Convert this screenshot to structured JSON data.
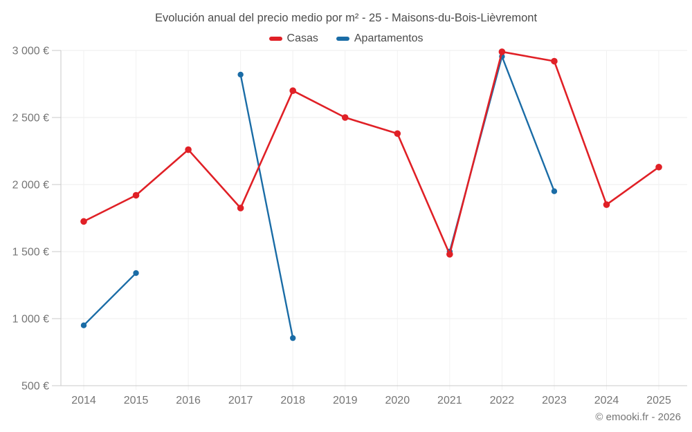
{
  "chart_data": {
    "type": "line",
    "title": "Evolución anual del precio medio por m² - 25 - Maisons-du-Bois-Lièvremont",
    "categories": [
      "2014",
      "2015",
      "2016",
      "2017",
      "2018",
      "2019",
      "2020",
      "2021",
      "2022",
      "2023",
      "2024",
      "2025"
    ],
    "series": [
      {
        "name": "Casas",
        "color": "#e02026",
        "values": [
          1725,
          1920,
          2260,
          1825,
          2700,
          2500,
          2380,
          1480,
          2990,
          2920,
          1850,
          2130
        ]
      },
      {
        "name": "Apartamentos",
        "color": "#1a6ca6",
        "values": [
          950,
          1340,
          null,
          2820,
          855,
          null,
          null,
          1500,
          2955,
          1950,
          null,
          null
        ]
      }
    ],
    "xlabel": "",
    "ylabel": "",
    "ylim": [
      500,
      3000
    ],
    "ytick_step": 500,
    "ytick_labels": [
      "500 €",
      "1 000 €",
      "1 500 €",
      "2 000 €",
      "2 500 €",
      "3 000 €"
    ],
    "grid": true,
    "legend_position": "top-center",
    "colors": {
      "axis": "#c9c9c9",
      "grid_horizontal": "#ececec",
      "grid_vertical": "#f1f1f1",
      "tick_text": "#757575",
      "title_text": "#4b4b4b"
    }
  },
  "footer": {
    "attribution": "© emooki.fr - 2026"
  }
}
